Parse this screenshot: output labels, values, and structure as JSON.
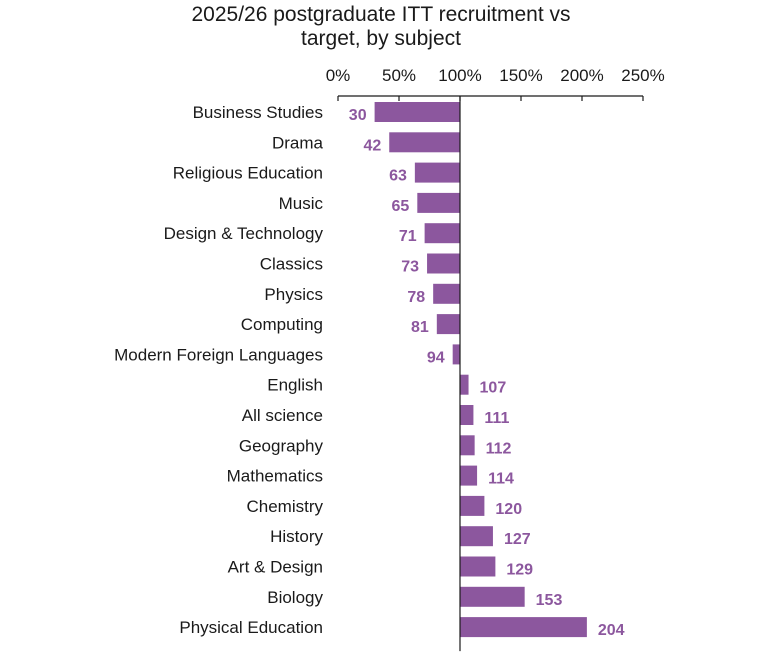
{
  "chart_data": {
    "type": "bar",
    "orientation": "horizontal",
    "title": "2025/26 postgraduate ITT recruitment vs target, by subject",
    "title_lines": [
      "2025/26 postgraduate ITT recruitment vs",
      "target, by subject"
    ],
    "xlabel": "",
    "ylabel": "",
    "axis_position": "top",
    "baseline": 100,
    "xlim": [
      0,
      250
    ],
    "xticks": [
      0,
      50,
      100,
      150,
      200,
      250
    ],
    "xtick_labels": [
      "0%",
      "50%",
      "100%",
      "150%",
      "200%",
      "250%"
    ],
    "grid": false,
    "legend": "none",
    "categories": [
      "Business Studies",
      "Drama",
      "Religious Education",
      "Music",
      "Design & Technology",
      "Classics",
      "Physics",
      "Computing",
      "Modern Foreign Languages",
      "English",
      "All science",
      "Geography",
      "Mathematics",
      "Chemistry",
      "History",
      "Art & Design",
      "Biology",
      "Physical Education"
    ],
    "values": [
      30,
      42,
      63,
      65,
      71,
      73,
      78,
      81,
      94,
      107,
      111,
      112,
      114,
      120,
      127,
      129,
      153,
      204
    ],
    "data_labels": [
      "30",
      "42",
      "63",
      "65",
      "71",
      "73",
      "78",
      "81",
      "94",
      "107",
      "111",
      "112",
      "114",
      "120",
      "127",
      "129",
      "153",
      "204"
    ],
    "bar_color": "#8c579e",
    "label_color": "#8c579e",
    "axis_color": "#1a1a1a"
  }
}
